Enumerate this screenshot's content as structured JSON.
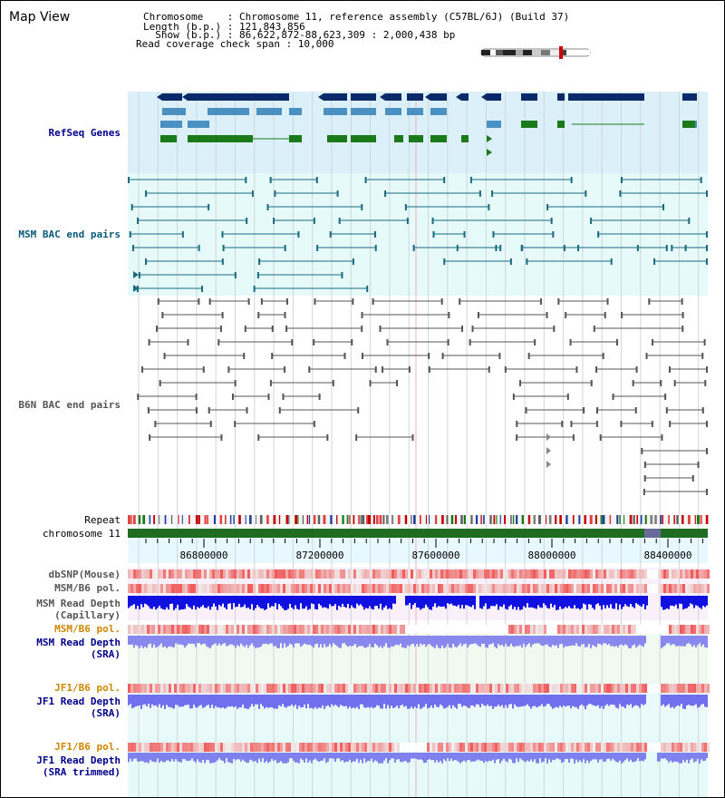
{
  "header": {
    "title": "Map View",
    "info_lines": [
      "Chromosome    : Chromosome 11, reference assembly (C57BL/6J) (Build 37)",
      "Length (b.p.) : 121,843,856",
      "  Show (b.p.) : 86,622,872-88,623,309 : 2,000,438 bp",
      "Read coverage check span : 10,000"
    ]
  },
  "tracks": {
    "refseq": "RefSeq Genes",
    "msm_bac": "MSM BAC end pairs",
    "b6n_bac": "B6N BAC end pairs",
    "repeat": "Repeat",
    "chromosome": "chromosome 11",
    "dbsnp": "dbSNP(Mouse)",
    "msm_b6_pol_1": "MSM/B6 pol.",
    "msm_read_depth_cap": "MSM Read Depth\n(Capillary)",
    "msm_b6_pol_2": "MSM/B6 pol.",
    "msm_read_depth_sra": "MSM Read Depth\n(SRA)",
    "jf1_b6_pol_1": "JF1/B6 pol.",
    "jf1_read_depth_sra": "JF1 Read Depth\n(SRA)",
    "jf1_b6_pol_2": "JF1/B6 pol.",
    "jf1_read_depth_trim": "JF1 Read Depth\n(SRA trimmed)"
  },
  "axis": {
    "ticks": [
      "86800000",
      "87200000",
      "87600000",
      "88000000",
      "88400000"
    ]
  },
  "colors": {
    "gene_dark": "#0a2a6a",
    "gene_mid": "#4a90c0",
    "gene_green": "#1a7a1a",
    "msm_pair": "#1a6a80",
    "b6n_pair": "#555555",
    "chromosome_bar": "#1f6b1f",
    "label_blue": "#00008b",
    "label_orange": "#cc8800",
    "label_teal": "#0a5a7a"
  }
}
